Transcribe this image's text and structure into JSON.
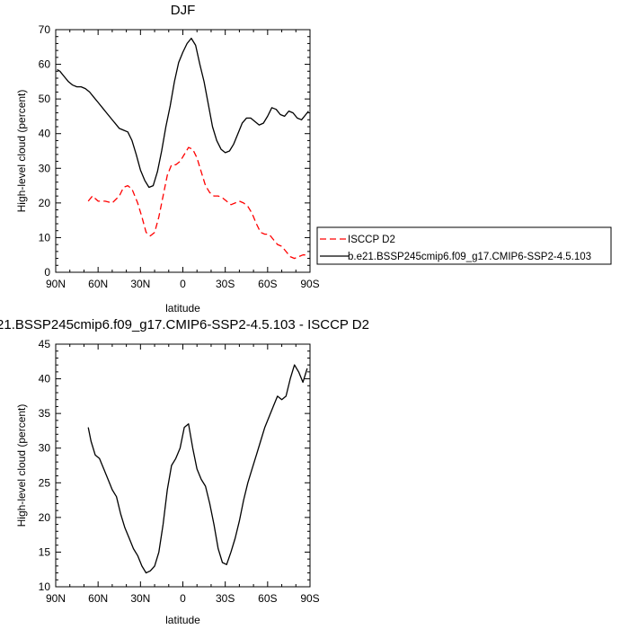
{
  "chart_data": [
    {
      "type": "line",
      "title": "DJF",
      "xlabel": "latitude",
      "ylabel": "High-level cloud (percent)",
      "xlim": [
        -90,
        90
      ],
      "ylim": [
        0,
        70
      ],
      "x_ticks": [
        -90,
        -60,
        -30,
        0,
        30,
        60,
        90
      ],
      "x_tick_labels": [
        "90N",
        "60N",
        "30N",
        "0",
        "30S",
        "60S",
        "90S"
      ],
      "y_ticks": [
        0,
        10,
        20,
        30,
        40,
        50,
        60,
        70
      ],
      "y_tick_labels": [
        "0",
        "10",
        "20",
        "30",
        "40",
        "50",
        "60",
        "70"
      ],
      "grid": false,
      "legend_position": "right",
      "series": [
        {
          "name": "ISCCP D2",
          "color": "#ff0000",
          "style": "dashed",
          "x": [
            -67,
            -64,
            -60,
            -55,
            -50,
            -45,
            -42,
            -39,
            -36,
            -32,
            -29,
            -26,
            -23,
            -20,
            -17,
            -14,
            -11,
            -8,
            -5,
            -2,
            1,
            4,
            7,
            10,
            13,
            16,
            19,
            22,
            25,
            28,
            31,
            34,
            37,
            40,
            43,
            46,
            49,
            52,
            55,
            58,
            61,
            64,
            67,
            70,
            73,
            76,
            79,
            82,
            85,
            88
          ],
          "y": [
            20.5,
            22.0,
            20.5,
            20.5,
            20.0,
            22.0,
            24.5,
            25.0,
            24.0,
            20.0,
            16.0,
            11.5,
            10.5,
            11.5,
            16.0,
            22.0,
            28.0,
            31.0,
            31.0,
            32.0,
            34.0,
            36.0,
            35.5,
            33.0,
            29.0,
            25.0,
            23.0,
            22.0,
            22.0,
            21.5,
            20.5,
            19.5,
            20.0,
            20.5,
            20.0,
            19.0,
            17.0,
            14.0,
            11.5,
            11.0,
            11.0,
            9.5,
            8.0,
            7.5,
            6.0,
            4.5,
            4.0,
            4.5,
            5.0,
            5.0
          ]
        },
        {
          "name": "b.e21.BSSP245cmip6.f09_g17.CMIP6-SSP2-4.5.103",
          "color": "#000000",
          "style": "solid",
          "x": [
            -89,
            -87,
            -84,
            -81,
            -78,
            -75,
            -72,
            -69,
            -66,
            -63,
            -60,
            -57,
            -54,
            -51,
            -48,
            -45,
            -42,
            -39,
            -36,
            -33,
            -30,
            -27,
            -24,
            -21,
            -18,
            -15,
            -12,
            -9,
            -6,
            -3,
            0,
            3,
            6,
            9,
            12,
            15,
            18,
            21,
            24,
            27,
            30,
            33,
            36,
            39,
            42,
            45,
            48,
            51,
            54,
            57,
            60,
            63,
            66,
            69,
            72,
            75,
            78,
            81,
            84,
            87,
            89
          ],
          "y": [
            58.5,
            58.0,
            56.5,
            55.0,
            54.0,
            53.5,
            53.5,
            53.0,
            52.0,
            50.5,
            49.0,
            47.5,
            46.0,
            44.5,
            43.0,
            41.5,
            41.0,
            40.5,
            38.0,
            34.0,
            29.5,
            26.5,
            24.5,
            25.0,
            29.0,
            35.0,
            42.0,
            48.0,
            55.0,
            60.5,
            63.5,
            66.0,
            67.5,
            65.5,
            60.0,
            55.0,
            48.5,
            42.0,
            38.0,
            35.5,
            34.5,
            35.0,
            37.0,
            40.0,
            43.0,
            44.5,
            44.5,
            43.5,
            42.5,
            43.0,
            45.0,
            47.5,
            47.0,
            45.5,
            45.0,
            46.5,
            46.0,
            44.5,
            44.0,
            45.5,
            46.5
          ]
        }
      ]
    },
    {
      "type": "line",
      "title": "21.BSSP245cmip6.f09_g17.CMIP6-SSP2-4.5.103 - ISCCP D2",
      "xlabel": "latitude",
      "ylabel": "High-level cloud (percent)",
      "xlim": [
        -90,
        90
      ],
      "ylim": [
        10,
        45
      ],
      "x_ticks": [
        -90,
        -60,
        -30,
        0,
        30,
        60,
        90
      ],
      "x_tick_labels": [
        "90N",
        "60N",
        "30N",
        "0",
        "30S",
        "60S",
        "90S"
      ],
      "y_ticks": [
        10,
        15,
        20,
        25,
        30,
        35,
        40,
        45
      ],
      "y_tick_labels": [
        "10",
        "15",
        "20",
        "25",
        "30",
        "35",
        "40",
        "45"
      ],
      "grid": false,
      "series": [
        {
          "color": "#000000",
          "style": "solid",
          "x": [
            -67,
            -65,
            -62,
            -59,
            -56,
            -53,
            -50,
            -47,
            -44,
            -41,
            -38,
            -35,
            -32,
            -29,
            -26,
            -23,
            -20,
            -17,
            -14,
            -11,
            -8,
            -5,
            -2,
            1,
            4,
            7,
            10,
            13,
            16,
            19,
            22,
            25,
            28,
            31,
            34,
            37,
            40,
            43,
            46,
            49,
            52,
            55,
            58,
            61,
            64,
            67,
            70,
            73,
            76,
            79,
            82,
            85,
            88
          ],
          "y": [
            33.0,
            31.0,
            29.0,
            28.5,
            27.0,
            25.5,
            24.0,
            23.0,
            20.5,
            18.5,
            17.0,
            15.5,
            14.5,
            13.0,
            12.0,
            12.3,
            13.0,
            15.0,
            19.0,
            24.0,
            27.5,
            28.5,
            30.0,
            33.0,
            33.5,
            30.0,
            27.0,
            25.5,
            24.5,
            22.0,
            19.0,
            15.5,
            13.5,
            13.2,
            15.0,
            17.0,
            19.5,
            22.5,
            25.0,
            27.0,
            29.0,
            31.0,
            33.0,
            34.5,
            36.0,
            37.5,
            37.0,
            37.5,
            40.0,
            42.0,
            41.0,
            39.5,
            41.5
          ]
        }
      ]
    }
  ]
}
